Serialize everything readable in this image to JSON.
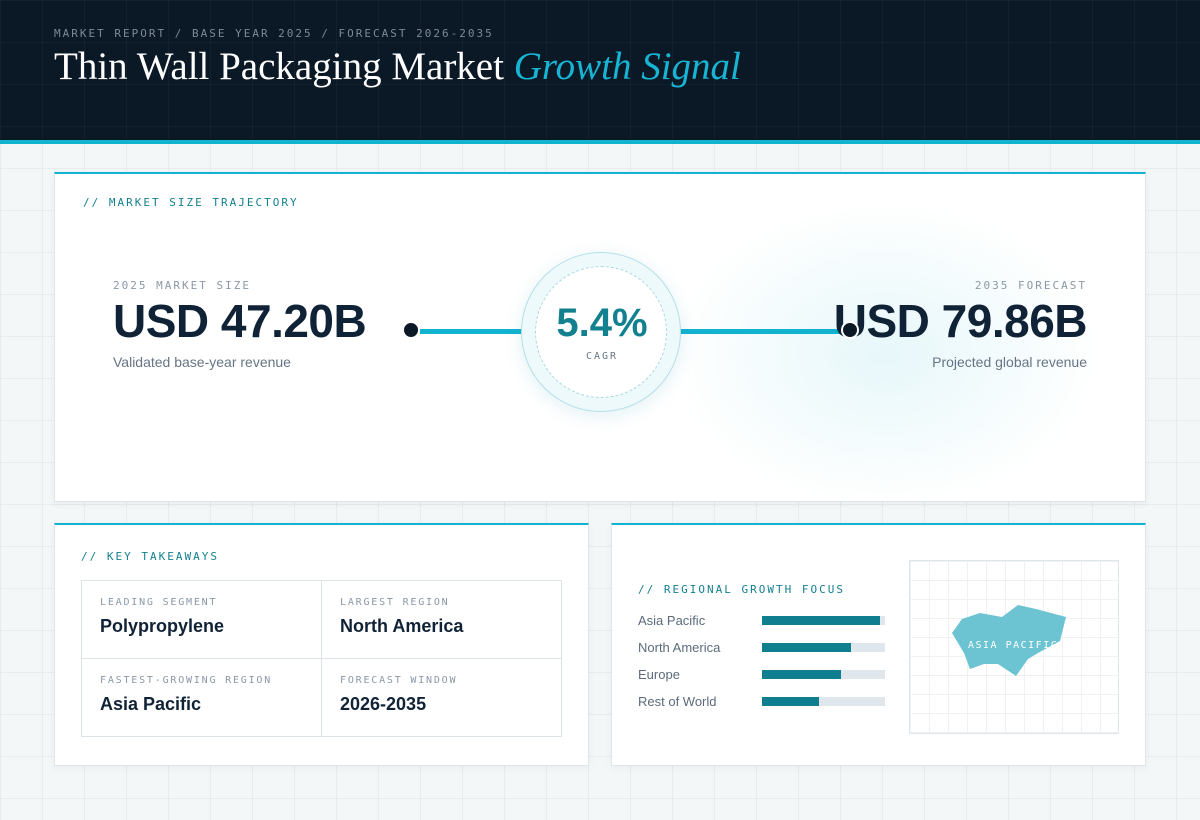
{
  "header": {
    "breadcrumb": "MARKET REPORT / BASE YEAR 2025 / FORECAST 2026-2035",
    "title": "Thin Wall Packaging Market",
    "title_accent": "Growth Signal"
  },
  "market_size": {
    "section_label": "// MARKET SIZE TRAJECTORY",
    "base": {
      "label": "2025 MARKET SIZE",
      "value": "USD 47.20B",
      "description": "Validated base-year revenue"
    },
    "cagr": {
      "value": "5.4%",
      "label": "CAGR"
    },
    "forecast": {
      "label": "2035 FORECAST",
      "value": "USD 79.86B",
      "description": "Projected global revenue"
    }
  },
  "takeaways": {
    "section_label": "// KEY TAKEAWAYS",
    "items": [
      {
        "label": "LEADING SEGMENT",
        "value": "Polypropylene"
      },
      {
        "label": "LARGEST REGION",
        "value": "North America"
      },
      {
        "label": "FASTEST-GROWING REGION",
        "value": "Asia Pacific"
      },
      {
        "label": "FORECAST WINDOW",
        "value": "2026-2035"
      }
    ]
  },
  "regional": {
    "section_label": "// REGIONAL GROWTH FOCUS",
    "bars": [
      {
        "label": "Asia Pacific",
        "level": 0.96
      },
      {
        "label": "North America",
        "level": 0.72
      },
      {
        "label": "Europe",
        "level": 0.64
      },
      {
        "label": "Rest of World",
        "level": 0.46
      }
    ],
    "map_label": "ASIA PACIFIC",
    "colors": {
      "bar": "#0f7e8e",
      "track": "#dfe7ec",
      "map_shape": "#6cc3d1"
    }
  },
  "colors": {
    "header_bg": "#0b1826",
    "accent": "#12b3cf",
    "teal_dark": "#13808f",
    "text_dark": "#102236"
  }
}
